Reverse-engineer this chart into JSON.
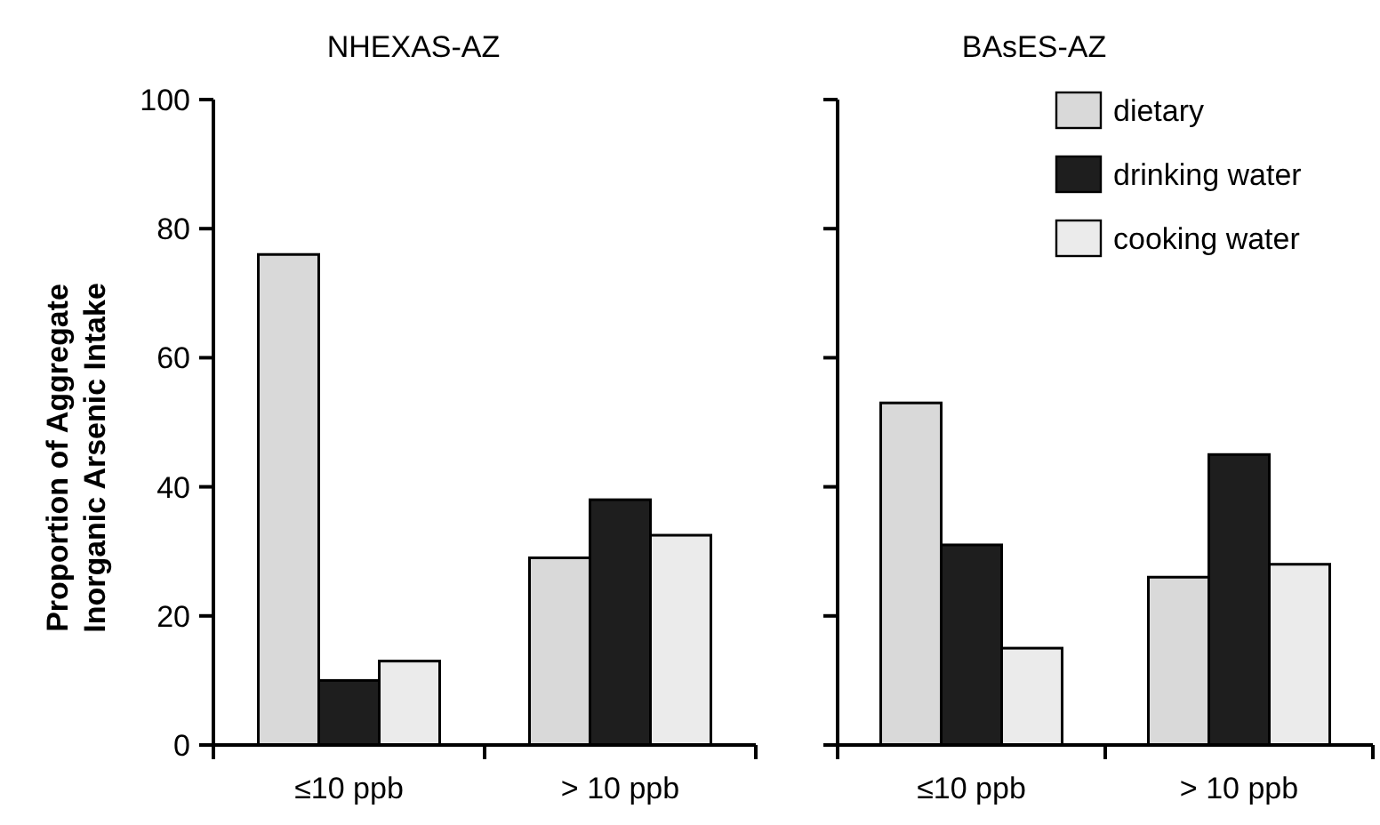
{
  "chart_data": [
    {
      "type": "bar",
      "title": "NHEXAS-AZ",
      "ylabel": "Proportion of Aggregate\nInorganic Arsenic Intake",
      "categories": [
        "≤10 ppb",
        "> 10 ppb"
      ],
      "ylim": [
        0,
        100
      ],
      "yticks": [
        0,
        20,
        40,
        60,
        80,
        100
      ],
      "legend": false,
      "series": [
        {
          "color": "#d9d9d9",
          "values": [
            76,
            29
          ]
        },
        {
          "color": "#1e1e1e",
          "values": [
            10,
            38
          ]
        },
        {
          "color": "#ebebeb",
          "values": [
            13,
            32.5
          ]
        }
      ]
    },
    {
      "type": "bar",
      "title": "BAsES-AZ",
      "categories": [
        "≤10 ppb",
        "> 10 ppb"
      ],
      "ylim": [
        0,
        100
      ],
      "yticks": [
        0,
        20,
        40,
        60,
        80,
        100
      ],
      "tick_labels": "x",
      "legend": "top right",
      "series": [
        {
          "name": "dietary",
          "color": "#d9d9d9",
          "values": [
            53,
            26
          ]
        },
        {
          "name": "drinking water",
          "color": "#1e1e1e",
          "values": [
            31,
            45
          ]
        },
        {
          "name": "cooking water",
          "color": "#ebebeb",
          "values": [
            15,
            28
          ]
        }
      ]
    }
  ]
}
